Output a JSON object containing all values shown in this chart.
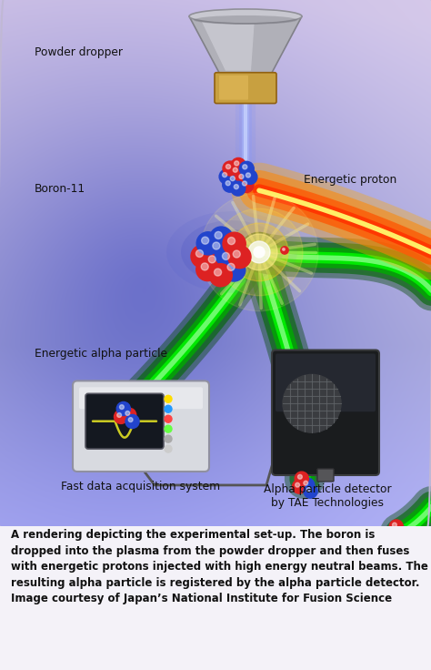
{
  "fig_width": 4.74,
  "fig_height": 7.36,
  "dpi": 100,
  "caption_text": "A rendering depicting the experimental set-up. The boron is\ndropped into the plasma from the powder dropper and then fuses\nwith energetic protons injected with high energy neutral beams. The\nresulting alpha particle is registered by the alpha particle detector.\nImage courtesy of Japan’s National Institute for Fusion Science",
  "labels": {
    "powder_dropper": "Powder dropper",
    "boron11": "Boron-11",
    "energetic_proton": "Energetic proton",
    "energetic_alpha": "Energetic alpha particle",
    "fast_data": "Fast data acquisition system",
    "alpha_detector": "Alpha particle detector\nby TAE Technologies"
  },
  "caption_fontsize": 8.5,
  "label_fontsize": 8.8
}
